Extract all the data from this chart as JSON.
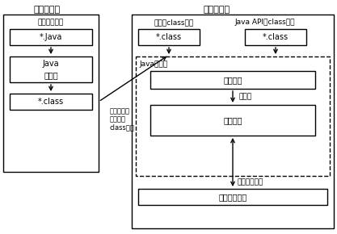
{
  "bg_color": "#ffffff",
  "title_compile": "编译时环境",
  "title_runtime": "运行时环境",
  "compile_label1": "程序的源文件",
  "compile_box1": "*.Java",
  "compile_box2_line1": "Java",
  "compile_box2_line2": "编译器",
  "compile_box3": "*.class",
  "arrow_label_line1": "通过本地或",
  "arrow_label_line2": "网络传递",
  "arrow_label_line3": "class文件",
  "runtime_label1": "程序的class文件",
  "runtime_label2": "Java API的class文件",
  "runtime_box1": "*.class",
  "runtime_box2": "*.class",
  "jvm_label": "Java虚拟机",
  "jvm_box1": "类装载器",
  "jvm_arrow_label": "字节码",
  "jvm_box2": "执行引擎",
  "bottom_arrow_label": "本地方法调用",
  "bottom_box": "主机操作系统",
  "font_size_title": 8,
  "font_size_label": 6.5,
  "font_size_box": 7
}
